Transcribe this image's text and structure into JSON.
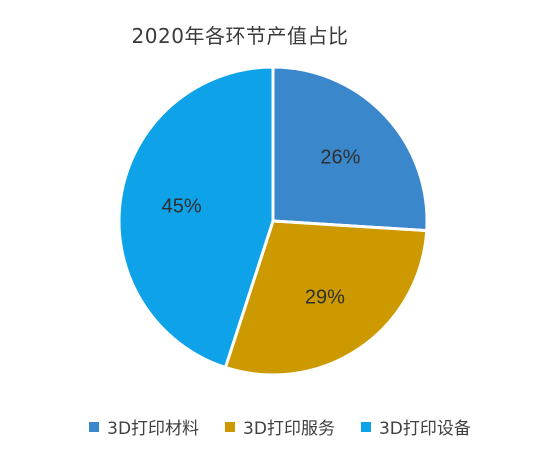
{
  "chart_data": {
    "type": "pie",
    "title": "2020年各环节产值占比",
    "categories": [
      "3D打印材料",
      "3D打印服务",
      "3D打印设备"
    ],
    "values": [
      26,
      29,
      45
    ],
    "labels": [
      "26%",
      "29%",
      "45%"
    ],
    "colors": [
      "#3a87cc",
      "#cc9a00",
      "#0ea2e8"
    ],
    "legend_position": "bottom"
  }
}
